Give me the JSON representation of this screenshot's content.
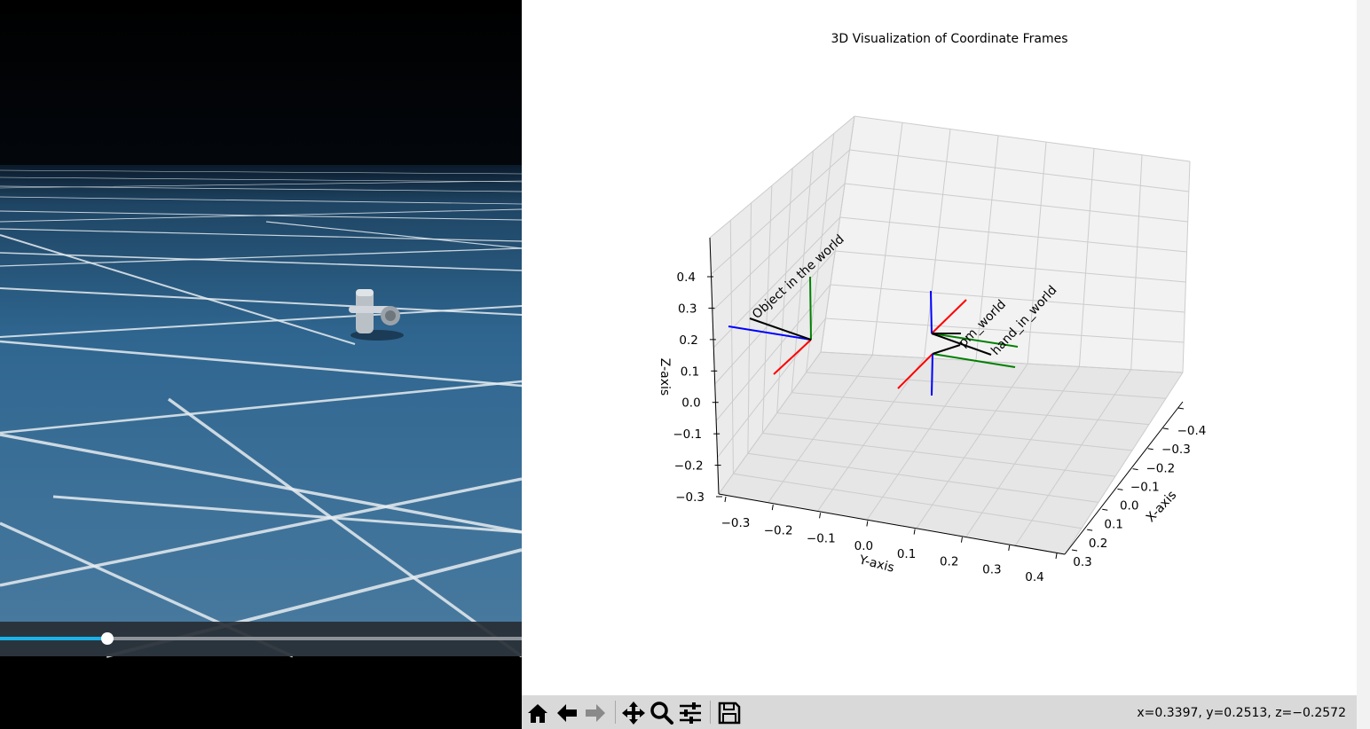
{
  "sim_view": {
    "video_progress": 0.206
  },
  "chart_data": {
    "type": "scatter",
    "title": "3D Visualization of Coordinate Frames",
    "xlabel": "X-axis",
    "ylabel": "Y-axis",
    "zlabel": "Z-axis",
    "x_ticks": [
      "−0.4",
      "−0.3",
      "−0.2",
      "−0.1",
      "0.0",
      "0.1",
      "0.2",
      "0.3"
    ],
    "y_ticks": [
      "−0.3",
      "−0.2",
      "−0.1",
      "0.0",
      "0.1",
      "0.2",
      "0.3",
      "0.4"
    ],
    "z_ticks": [
      "−0.3",
      "−0.2",
      "−0.1",
      "0.0",
      "0.1",
      "0.2",
      "0.3",
      "0.4"
    ],
    "grid": true,
    "frames": [
      {
        "label": "Object in the world"
      },
      {
        "label": "pm_world"
      },
      {
        "label": "hand_in_world"
      }
    ],
    "axis_colors": {
      "x": "#ff0000",
      "y": "#008000",
      "z": "#0000ff",
      "link": "#000000"
    }
  },
  "toolbar": {
    "icons": [
      "home-icon",
      "back-arrow-icon",
      "forward-arrow-icon",
      "pan-icon",
      "zoom-icon",
      "configure-subplots-icon",
      "save-icon"
    ],
    "coordinate_readout": "x=0.3397, y=0.2513, z=−0.2572"
  }
}
